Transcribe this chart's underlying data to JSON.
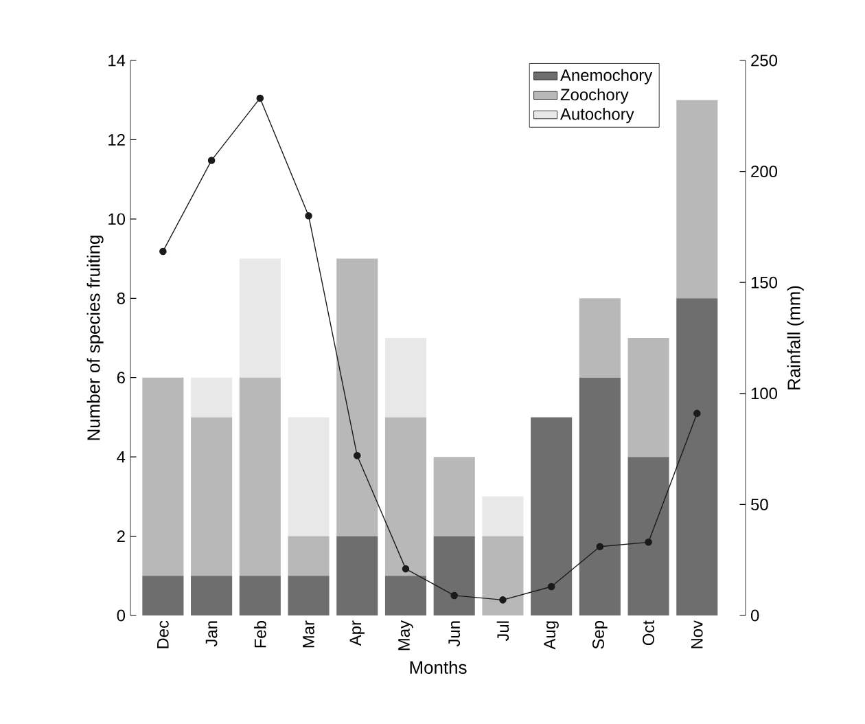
{
  "chart_data": {
    "type": "bar",
    "stacked": true,
    "xlabel": "Months",
    "ylabel": "Number of species fruiting",
    "y2label": "Rainfall (mm)",
    "categories": [
      "Dec",
      "Jan",
      "Feb",
      "Mar",
      "Apr",
      "May",
      "Jun",
      "Jul",
      "Aug",
      "Sep",
      "Oct",
      "Nov"
    ],
    "series": [
      {
        "name": "Anemochory",
        "color": "#6e6e6e",
        "values": [
          1,
          1,
          1,
          1,
          2,
          1,
          2,
          0,
          5,
          6,
          4,
          8
        ]
      },
      {
        "name": "Zoochory",
        "color": "#b8b8b8",
        "values": [
          5,
          4,
          5,
          1,
          7,
          4,
          2,
          2,
          0,
          2,
          3,
          5
        ]
      },
      {
        "name": "Autochory",
        "color": "#e8e8e8",
        "values": [
          0,
          1,
          3,
          3,
          0,
          2,
          0,
          1,
          0,
          0,
          0,
          0
        ]
      },
      {
        "type": "line",
        "axis": "y2",
        "color": "#1a1a1a",
        "marker": "circle",
        "line_style": "solid",
        "values": [
          164,
          205,
          233,
          180,
          72,
          21,
          9,
          7,
          13,
          31,
          33,
          91
        ]
      }
    ],
    "ylim": [
      0,
      14
    ],
    "yticks": [
      0,
      2,
      4,
      6,
      8,
      10,
      12,
      14
    ],
    "y2lim": [
      0,
      250
    ],
    "y2ticks": [
      0,
      50,
      100,
      150,
      200,
      250
    ],
    "legend": "top right"
  }
}
